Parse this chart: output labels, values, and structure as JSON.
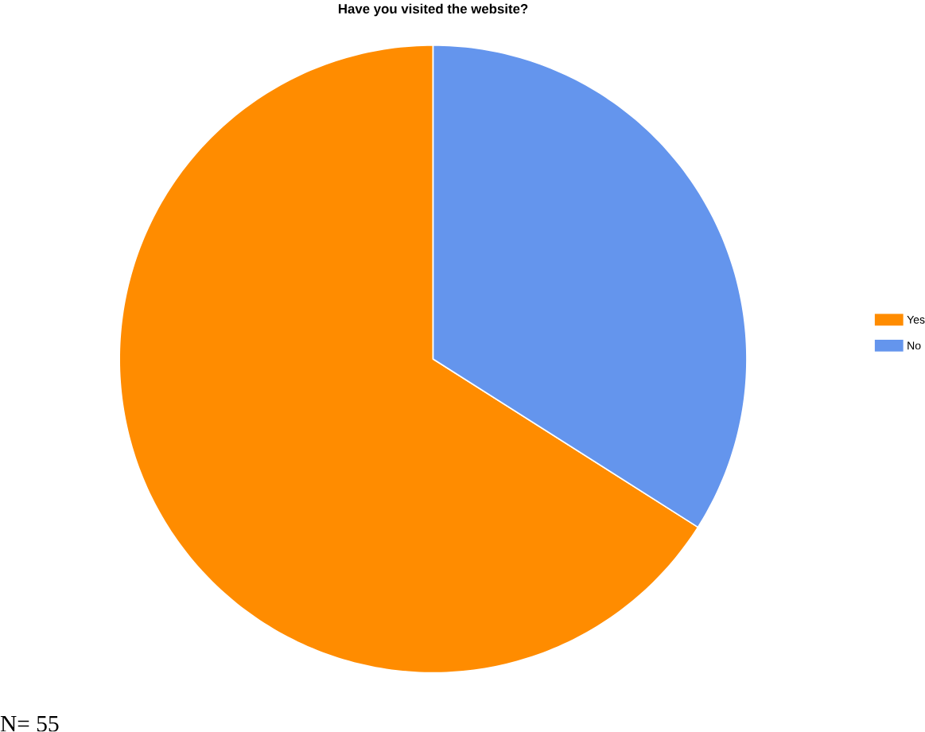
{
  "chart_data": {
    "type": "pie",
    "title": "Have you visited the website?",
    "categories": [
      "Yes",
      "No"
    ],
    "values": [
      66,
      34
    ],
    "colors": [
      "#ff8c00",
      "#6495ed"
    ],
    "legend": "right",
    "annotations": [
      "N= 55"
    ]
  }
}
